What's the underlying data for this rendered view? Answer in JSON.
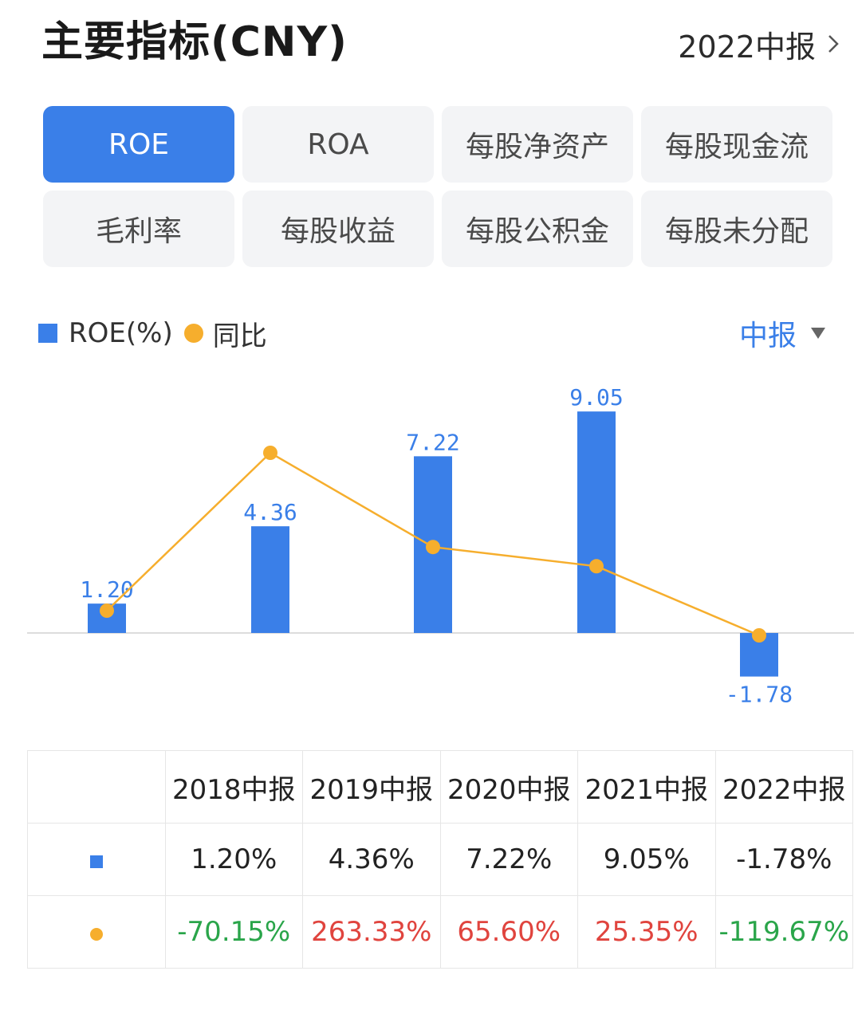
{
  "header": {
    "title": "主要指标(CNY)",
    "period": "2022中报"
  },
  "tabs": [
    {
      "label": "ROE",
      "active": true
    },
    {
      "label": "ROA",
      "active": false
    },
    {
      "label": "每股净资产",
      "active": false
    },
    {
      "label": "每股现金流",
      "active": false
    },
    {
      "label": "毛利率",
      "active": false
    },
    {
      "label": "每股收益",
      "active": false
    },
    {
      "label": "每股公积金",
      "active": false
    },
    {
      "label": "每股未分配",
      "active": false
    }
  ],
  "legend": {
    "bar_label": "ROE(%)",
    "line_label": "同比"
  },
  "period_selector": "中报",
  "colors": {
    "accent": "#3a7fe8",
    "line": "#f6ae2d",
    "positive": "#e0443e",
    "negative": "#2aa54a"
  },
  "chart_data": {
    "type": "bar",
    "categories": [
      "2018中报",
      "2019中报",
      "2020中报",
      "2021中报",
      "2022中报"
    ],
    "series": [
      {
        "name": "ROE(%)",
        "type": "bar",
        "values": [
          1.2,
          4.36,
          7.22,
          9.05,
          -1.78
        ],
        "labels": [
          "1.20",
          "4.36",
          "7.22",
          "9.05",
          "-1.78"
        ]
      },
      {
        "name": "同比",
        "type": "line",
        "values": [
          -70.15,
          263.33,
          65.6,
          25.35,
          -119.67
        ]
      }
    ],
    "grid": false,
    "legend_position": "top-left"
  },
  "table": {
    "headers": [
      "2018中报",
      "2019中报",
      "2020中报",
      "2021中报",
      "2022中报"
    ],
    "roe_row": [
      "1.20%",
      "4.36%",
      "7.22%",
      "9.05%",
      "-1.78%"
    ],
    "yoy_row": [
      "-70.15%",
      "263.33%",
      "65.60%",
      "25.35%",
      "-119.67%"
    ]
  }
}
